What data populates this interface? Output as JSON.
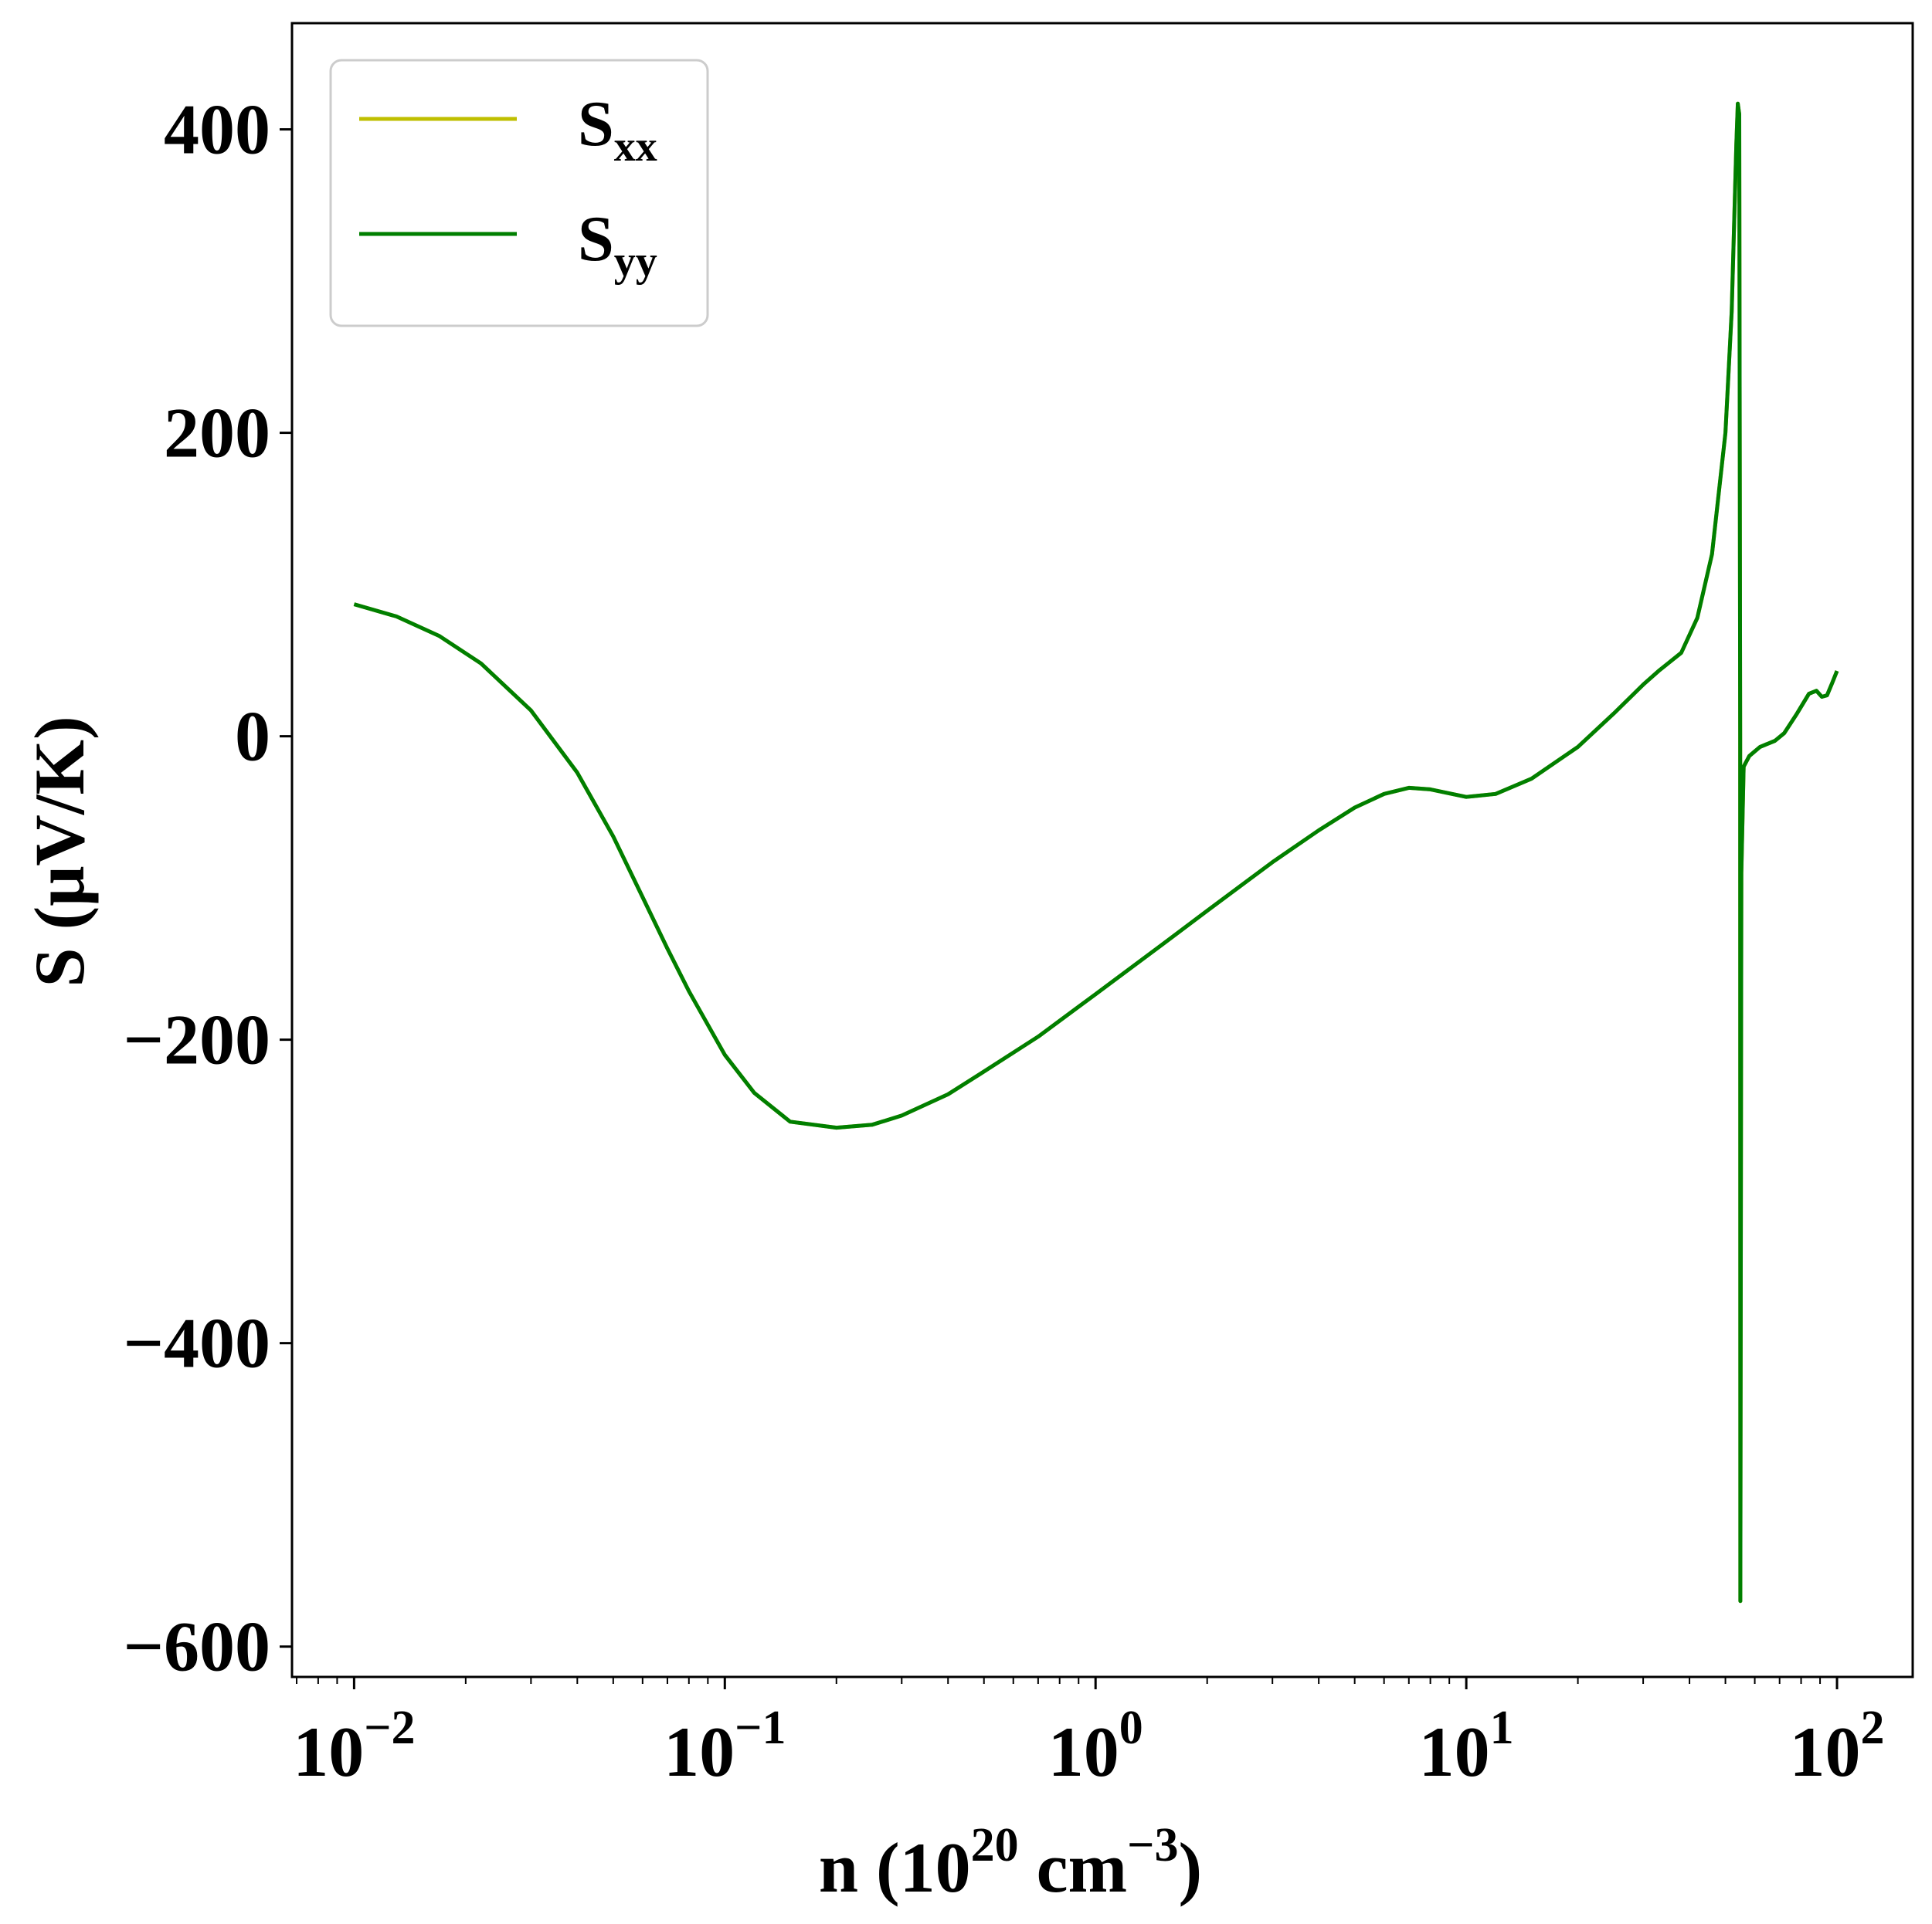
{
  "chart_data": {
    "type": "line",
    "xscale": "log",
    "xlim": [
      0.0068,
      160
    ],
    "ylim": [
      -620,
      470
    ],
    "grid": false,
    "legend_position": "top-left",
    "xlabel": {
      "base": "n (10",
      "sup1": "20",
      "mid": " cm",
      "sup2": "−3",
      "end": ")"
    },
    "ylabel": "S (μV/K)",
    "x_ticks": [
      {
        "value": 0.01,
        "base": "10",
        "exp": "−2"
      },
      {
        "value": 0.1,
        "base": "10",
        "exp": "−1"
      },
      {
        "value": 1,
        "base": "10",
        "exp": "0"
      },
      {
        "value": 10,
        "base": "10",
        "exp": "1"
      },
      {
        "value": 100,
        "base": "10",
        "exp": "2"
      }
    ],
    "y_ticks": [
      {
        "value": 400,
        "label": "400"
      },
      {
        "value": 200,
        "label": "200"
      },
      {
        "value": 0,
        "label": "0"
      },
      {
        "value": -200,
        "label": "−200"
      },
      {
        "value": -400,
        "label": "−400"
      },
      {
        "value": -600,
        "label": "−600"
      }
    ],
    "series": [
      {
        "name": {
          "main": "S",
          "sub": "xx"
        },
        "color": "#bfbf00",
        "x": [
          0.01,
          0.013,
          0.017,
          0.022,
          0.03,
          0.04,
          0.05,
          0.06,
          0.07,
          0.08,
          0.1,
          0.12,
          0.15,
          0.2,
          0.25,
          0.3,
          0.4,
          0.5,
          0.7,
          1,
          1.5,
          2,
          3,
          4,
          5,
          6,
          7,
          8,
          10,
          12,
          15,
          20,
          25,
          30,
          33,
          38,
          42,
          46,
          50,
          52,
          53.5,
          54,
          54.5,
          54.8,
          54.85,
          55.2,
          56,
          58,
          62,
          68,
          72,
          78,
          84,
          88,
          91,
          94,
          97,
          100
        ],
        "y": [
          87,
          79,
          66,
          48,
          17,
          -24,
          -66,
          -106,
          -140,
          -168,
          -210,
          -235,
          -254,
          -258,
          -256,
          -250,
          -236,
          -221,
          -198,
          -170,
          -138,
          -115,
          -83,
          -62,
          -47,
          -38,
          -34,
          -35,
          -40,
          -38,
          -28,
          -7,
          15,
          34,
          43,
          55,
          78,
          120,
          200,
          280,
          390,
          417,
          410,
          0,
          -570,
          -90,
          -20,
          -13,
          -7,
          -3,
          2,
          15,
          28,
          30,
          26,
          27,
          35,
          43
        ]
      },
      {
        "name": {
          "main": "S",
          "sub": "yy"
        },
        "color": "#007f00",
        "x": [
          0.01,
          0.013,
          0.017,
          0.022,
          0.03,
          0.04,
          0.05,
          0.06,
          0.07,
          0.08,
          0.1,
          0.12,
          0.15,
          0.2,
          0.25,
          0.3,
          0.4,
          0.5,
          0.7,
          1,
          1.5,
          2,
          3,
          4,
          5,
          6,
          7,
          8,
          10,
          12,
          15,
          20,
          25,
          30,
          33,
          38,
          42,
          46,
          50,
          52,
          53.5,
          54,
          54.5,
          54.8,
          54.85,
          55.2,
          56,
          58,
          62,
          68,
          72,
          78,
          84,
          88,
          91,
          94,
          97,
          100
        ],
        "y": [
          87,
          79,
          66,
          48,
          17,
          -24,
          -66,
          -106,
          -140,
          -168,
          -210,
          -235,
          -254,
          -258,
          -256,
          -250,
          -236,
          -221,
          -198,
          -170,
          -138,
          -115,
          -83,
          -62,
          -47,
          -38,
          -34,
          -35,
          -40,
          -38,
          -28,
          -7,
          15,
          34,
          43,
          55,
          78,
          120,
          200,
          280,
          390,
          417,
          410,
          0,
          -570,
          -90,
          -20,
          -13,
          -7,
          -3,
          2,
          15,
          28,
          30,
          26,
          27,
          35,
          43
        ]
      }
    ]
  }
}
